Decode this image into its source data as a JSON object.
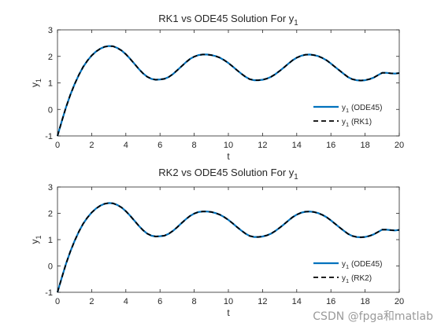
{
  "chart_data": [
    {
      "type": "line",
      "title": "RK1 vs ODE45 Solution For y",
      "title_sub": "1",
      "xlabel": "t",
      "ylabel": "y",
      "ylabel_sub": "1",
      "xlim": [
        0,
        20
      ],
      "ylim": [
        -1,
        3
      ],
      "xticks": [
        0,
        2,
        4,
        6,
        8,
        10,
        12,
        14,
        16,
        18,
        20
      ],
      "yticks": [
        -1,
        0,
        1,
        2,
        3
      ],
      "grid": false,
      "legend_position": "bottom-right",
      "x": [
        0,
        0.25,
        0.5,
        0.75,
        1,
        1.25,
        1.5,
        1.75,
        2,
        2.25,
        2.5,
        2.75,
        3,
        3.25,
        3.5,
        3.75,
        4,
        4.25,
        4.5,
        4.75,
        5,
        5.25,
        5.5,
        5.75,
        6,
        6.25,
        6.5,
        6.75,
        7,
        7.25,
        7.5,
        7.75,
        8,
        8.25,
        8.5,
        8.75,
        9,
        9.25,
        9.5,
        9.75,
        10,
        10.25,
        10.5,
        10.75,
        11,
        11.25,
        11.5,
        11.75,
        12,
        12.25,
        12.5,
        12.75,
        13,
        13.25,
        13.5,
        13.75,
        14,
        14.25,
        14.5,
        14.75,
        15,
        15.25,
        15.5,
        15.75,
        16,
        16.25,
        16.5,
        16.75,
        17,
        17.25,
        17.5,
        17.75,
        18,
        18.25,
        18.5,
        18.75,
        19,
        19.25,
        19.5,
        19.75,
        20
      ],
      "series": [
        {
          "name": "y",
          "name_sub": "1",
          "name_suffix": "(ODE45)",
          "color": "#0072BD",
          "dash": "solid",
          "values": [
            -1,
            -0.45,
            0.08,
            0.55,
            0.95,
            1.3,
            1.6,
            1.84,
            2.03,
            2.18,
            2.29,
            2.36,
            2.39,
            2.38,
            2.32,
            2.22,
            2.08,
            1.91,
            1.72,
            1.53,
            1.36,
            1.23,
            1.15,
            1.12,
            1.13,
            1.15,
            1.22,
            1.33,
            1.47,
            1.62,
            1.77,
            1.9,
            1.99,
            2.05,
            2.07,
            2.07,
            2.05,
            2.01,
            1.95,
            1.86,
            1.75,
            1.62,
            1.48,
            1.35,
            1.23,
            1.14,
            1.1,
            1.1,
            1.12,
            1.16,
            1.23,
            1.33,
            1.45,
            1.58,
            1.72,
            1.85,
            1.95,
            2.02,
            2.06,
            2.07,
            2.05,
            2.01,
            1.94,
            1.85,
            1.73,
            1.6,
            1.47,
            1.34,
            1.22,
            1.14,
            1.1,
            1.09,
            1.1,
            1.14,
            1.2,
            1.29,
            1.38,
            1.38,
            1.36,
            1.35,
            1.37
          ]
        },
        {
          "name": "y",
          "name_sub": "1",
          "name_suffix": "(RK1)",
          "color": "#000000",
          "dash": "dashed",
          "values": [
            -1,
            -0.45,
            0.08,
            0.55,
            0.95,
            1.3,
            1.6,
            1.84,
            2.03,
            2.18,
            2.29,
            2.36,
            2.39,
            2.38,
            2.32,
            2.22,
            2.08,
            1.91,
            1.72,
            1.53,
            1.36,
            1.23,
            1.15,
            1.12,
            1.13,
            1.15,
            1.22,
            1.33,
            1.47,
            1.62,
            1.77,
            1.9,
            1.99,
            2.05,
            2.07,
            2.07,
            2.05,
            2.01,
            1.95,
            1.86,
            1.75,
            1.62,
            1.48,
            1.35,
            1.23,
            1.14,
            1.1,
            1.1,
            1.12,
            1.16,
            1.23,
            1.33,
            1.45,
            1.58,
            1.72,
            1.85,
            1.95,
            2.02,
            2.06,
            2.07,
            2.05,
            2.01,
            1.94,
            1.85,
            1.73,
            1.6,
            1.47,
            1.34,
            1.22,
            1.14,
            1.1,
            1.09,
            1.1,
            1.14,
            1.2,
            1.29,
            1.38,
            1.38,
            1.36,
            1.35,
            1.37
          ]
        }
      ]
    },
    {
      "type": "line",
      "title": "RK2 vs ODE45 Solution For y",
      "title_sub": "1",
      "xlabel": "t",
      "ylabel": "y",
      "ylabel_sub": "1",
      "xlim": [
        0,
        20
      ],
      "ylim": [
        -1,
        3
      ],
      "xticks": [
        0,
        2,
        4,
        6,
        8,
        10,
        12,
        14,
        16,
        18,
        20
      ],
      "yticks": [
        -1,
        0,
        1,
        2,
        3
      ],
      "grid": false,
      "legend_position": "bottom-right",
      "x": [
        0,
        0.25,
        0.5,
        0.75,
        1,
        1.25,
        1.5,
        1.75,
        2,
        2.25,
        2.5,
        2.75,
        3,
        3.25,
        3.5,
        3.75,
        4,
        4.25,
        4.5,
        4.75,
        5,
        5.25,
        5.5,
        5.75,
        6,
        6.25,
        6.5,
        6.75,
        7,
        7.25,
        7.5,
        7.75,
        8,
        8.25,
        8.5,
        8.75,
        9,
        9.25,
        9.5,
        9.75,
        10,
        10.25,
        10.5,
        10.75,
        11,
        11.25,
        11.5,
        11.75,
        12,
        12.25,
        12.5,
        12.75,
        13,
        13.25,
        13.5,
        13.75,
        14,
        14.25,
        14.5,
        14.75,
        15,
        15.25,
        15.5,
        15.75,
        16,
        16.25,
        16.5,
        16.75,
        17,
        17.25,
        17.5,
        17.75,
        18,
        18.25,
        18.5,
        18.75,
        19,
        19.25,
        19.5,
        19.75,
        20
      ],
      "series": [
        {
          "name": "y",
          "name_sub": "1",
          "name_suffix": "(ODE45)",
          "color": "#0072BD",
          "dash": "solid",
          "values": [
            -1,
            -0.45,
            0.08,
            0.55,
            0.95,
            1.3,
            1.6,
            1.84,
            2.03,
            2.18,
            2.29,
            2.36,
            2.39,
            2.38,
            2.32,
            2.22,
            2.08,
            1.91,
            1.72,
            1.53,
            1.36,
            1.23,
            1.15,
            1.12,
            1.13,
            1.15,
            1.22,
            1.33,
            1.47,
            1.62,
            1.77,
            1.9,
            1.99,
            2.05,
            2.07,
            2.07,
            2.05,
            2.01,
            1.95,
            1.86,
            1.75,
            1.62,
            1.48,
            1.35,
            1.23,
            1.14,
            1.1,
            1.1,
            1.12,
            1.16,
            1.23,
            1.33,
            1.45,
            1.58,
            1.72,
            1.85,
            1.95,
            2.02,
            2.06,
            2.07,
            2.05,
            2.01,
            1.94,
            1.85,
            1.73,
            1.6,
            1.47,
            1.34,
            1.22,
            1.14,
            1.1,
            1.09,
            1.1,
            1.14,
            1.2,
            1.29,
            1.38,
            1.38,
            1.36,
            1.35,
            1.37
          ]
        },
        {
          "name": "y",
          "name_sub": "1",
          "name_suffix": "(RK2)",
          "color": "#000000",
          "dash": "dashed",
          "values": [
            -1,
            -0.45,
            0.08,
            0.55,
            0.95,
            1.3,
            1.6,
            1.84,
            2.03,
            2.18,
            2.29,
            2.36,
            2.39,
            2.38,
            2.32,
            2.22,
            2.08,
            1.91,
            1.72,
            1.53,
            1.36,
            1.23,
            1.15,
            1.12,
            1.13,
            1.15,
            1.22,
            1.33,
            1.47,
            1.62,
            1.77,
            1.9,
            1.99,
            2.05,
            2.07,
            2.07,
            2.05,
            2.01,
            1.95,
            1.86,
            1.75,
            1.62,
            1.48,
            1.35,
            1.23,
            1.14,
            1.1,
            1.1,
            1.12,
            1.16,
            1.23,
            1.33,
            1.45,
            1.58,
            1.72,
            1.85,
            1.95,
            2.02,
            2.06,
            2.07,
            2.05,
            2.01,
            1.94,
            1.85,
            1.73,
            1.6,
            1.47,
            1.34,
            1.22,
            1.14,
            1.1,
            1.09,
            1.1,
            1.14,
            1.2,
            1.29,
            1.38,
            1.38,
            1.36,
            1.35,
            1.37
          ]
        }
      ]
    }
  ],
  "watermark": "CSDN @fpga和matlab",
  "colors": {
    "axis": "#262626",
    "background": "#ffffff"
  }
}
